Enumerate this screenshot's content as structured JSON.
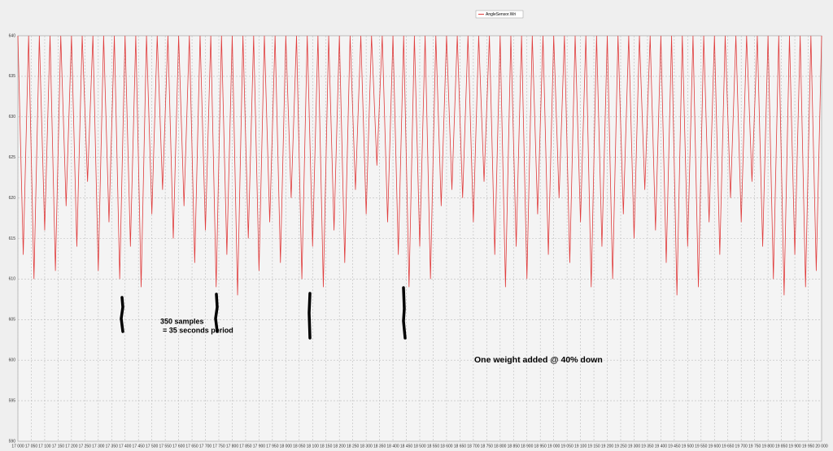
{
  "chart_data": {
    "type": "line",
    "x": [
      17000,
      17020,
      17040,
      17060,
      17080,
      17100,
      17120,
      17140,
      17160,
      17180,
      17200,
      17220,
      17240,
      17260,
      17280,
      17300,
      17320,
      17340,
      17360,
      17380,
      17400,
      17420,
      17440,
      17460,
      17480,
      17500,
      17520,
      17540,
      17560,
      17580,
      17600,
      17620,
      17640,
      17660,
      17680,
      17700,
      17720,
      17740,
      17760,
      17780,
      17800,
      17820,
      17840,
      17860,
      17880,
      17900,
      17920,
      17940,
      17960,
      17980,
      18000,
      18020,
      18040,
      18060,
      18080,
      18100,
      18120,
      18140,
      18160,
      18180,
      18200,
      18220,
      18240,
      18260,
      18280,
      18300,
      18320,
      18340,
      18360,
      18380,
      18400,
      18420,
      18440,
      18460,
      18480,
      18500,
      18520,
      18540,
      18560,
      18580,
      18600,
      18620,
      18640,
      18660,
      18680,
      18700,
      18720,
      18740,
      18760,
      18780,
      18800,
      18820,
      18840,
      18860,
      18880,
      18900,
      18920,
      18940,
      18960,
      18980,
      19000,
      19020,
      19040,
      19060,
      19080,
      19100,
      19120,
      19140,
      19160,
      19180,
      19200,
      19220,
      19240,
      19260,
      19280,
      19300,
      19320,
      19340,
      19360,
      19380,
      19400,
      19420,
      19440,
      19460,
      19480,
      19500,
      19520,
      19540,
      19560,
      19580,
      19600,
      19620,
      19640,
      19660,
      19680,
      19700,
      19720,
      19740,
      19760,
      19780,
      19800,
      19820,
      19840,
      19860,
      19880,
      19900,
      19920,
      19940,
      19960,
      19980,
      20000
    ],
    "series": [
      {
        "name": "AngleSensor.Wri",
        "color": "#e03c3c",
        "values": [
          640,
          613,
          640,
          610,
          640,
          616,
          640,
          611,
          640,
          619,
          640,
          614,
          640,
          622,
          640,
          611,
          640,
          617,
          640,
          610,
          640,
          614,
          640,
          609,
          640,
          618,
          640,
          621,
          640,
          615,
          640,
          619,
          640,
          612,
          640,
          616,
          640,
          609,
          640,
          613,
          640,
          608,
          640,
          615,
          640,
          611,
          640,
          617,
          640,
          612,
          640,
          620,
          640,
          610,
          640,
          614,
          640,
          609,
          640,
          616,
          640,
          612,
          640,
          621,
          640,
          618,
          640,
          624,
          640,
          617,
          640,
          613,
          640,
          609,
          640,
          614,
          640,
          610,
          640,
          619,
          640,
          621,
          640,
          620,
          640,
          617,
          640,
          622,
          640,
          613,
          640,
          609,
          640,
          614,
          640,
          610,
          640,
          618,
          640,
          613,
          640,
          620,
          640,
          612,
          640,
          617,
          640,
          609,
          640,
          614,
          640,
          610,
          640,
          618,
          640,
          615,
          640,
          621,
          640,
          616,
          640,
          612,
          640,
          608,
          640,
          614,
          640,
          609,
          640,
          617,
          640,
          613,
          640,
          620,
          640,
          617,
          640,
          622,
          640,
          614,
          640,
          610,
          640,
          608,
          640,
          613,
          640,
          609,
          640,
          611,
          640
        ]
      }
    ],
    "ylim": [
      590,
      640
    ],
    "yticks": [
      590,
      595,
      600,
      605,
      610,
      615,
      620,
      625,
      630,
      635,
      640
    ],
    "xlim": [
      17000,
      20000
    ],
    "xticks": [
      {
        "value": 17000,
        "label": "17 000"
      },
      {
        "value": 17050,
        "label": "17 050"
      },
      {
        "value": 17100,
        "label": "17 100"
      },
      {
        "value": 17150,
        "label": "17 150"
      },
      {
        "value": 17200,
        "label": "17 200"
      },
      {
        "value": 17250,
        "label": "17 250"
      },
      {
        "value": 17300,
        "label": "17 300"
      },
      {
        "value": 17350,
        "label": "17 350"
      },
      {
        "value": 17400,
        "label": "17 400"
      },
      {
        "value": 17450,
        "label": "17 450"
      },
      {
        "value": 17500,
        "label": "17 500"
      },
      {
        "value": 17550,
        "label": "17 550"
      },
      {
        "value": 17600,
        "label": "17 600"
      },
      {
        "value": 17650,
        "label": "17 650"
      },
      {
        "value": 17700,
        "label": "17 700"
      },
      {
        "value": 17750,
        "label": "17 750"
      },
      {
        "value": 17800,
        "label": "17 800"
      },
      {
        "value": 17850,
        "label": "17 850"
      },
      {
        "value": 17900,
        "label": "17 900"
      },
      {
        "value": 17950,
        "label": "17 950"
      },
      {
        "value": 18000,
        "label": "18 000"
      },
      {
        "value": 18050,
        "label": "18 050"
      },
      {
        "value": 18100,
        "label": "18 100"
      },
      {
        "value": 18150,
        "label": "18 150"
      },
      {
        "value": 18200,
        "label": "18 200"
      },
      {
        "value": 18250,
        "label": "18 250"
      },
      {
        "value": 18300,
        "label": "18 300"
      },
      {
        "value": 18350,
        "label": "18 350"
      },
      {
        "value": 18400,
        "label": "18 400"
      },
      {
        "value": 18450,
        "label": "18 450"
      },
      {
        "value": 18500,
        "label": "18 500"
      },
      {
        "value": 18550,
        "label": "18 550"
      },
      {
        "value": 18600,
        "label": "18 600"
      },
      {
        "value": 18650,
        "label": "18 650"
      },
      {
        "value": 18700,
        "label": "18 700"
      },
      {
        "value": 18750,
        "label": "18 750"
      },
      {
        "value": 18800,
        "label": "18 800"
      },
      {
        "value": 18850,
        "label": "18 850"
      },
      {
        "value": 18900,
        "label": "18 900"
      },
      {
        "value": 18950,
        "label": "18 950"
      },
      {
        "value": 19000,
        "label": "19 000"
      },
      {
        "value": 19050,
        "label": "19 050"
      },
      {
        "value": 19100,
        "label": "19 100"
      },
      {
        "value": 19150,
        "label": "19 150"
      },
      {
        "value": 19200,
        "label": "19 200"
      },
      {
        "value": 19250,
        "label": "19 250"
      },
      {
        "value": 19300,
        "label": "19 300"
      },
      {
        "value": 19350,
        "label": "19 350"
      },
      {
        "value": 19400,
        "label": "19 400"
      },
      {
        "value": 19450,
        "label": "19 450"
      },
      {
        "value": 19500,
        "label": "19 500"
      },
      {
        "value": 19550,
        "label": "19 550"
      },
      {
        "value": 19600,
        "label": "19 600"
      },
      {
        "value": 19650,
        "label": "19 650"
      },
      {
        "value": 19700,
        "label": "19 700"
      },
      {
        "value": 19750,
        "label": "19 750"
      },
      {
        "value": 19800,
        "label": "19 800"
      },
      {
        "value": 19850,
        "label": "19 850"
      },
      {
        "value": 19900,
        "label": "19 900"
      },
      {
        "value": 19950,
        "label": "19 950"
      },
      {
        "value": 20000,
        "label": "20 000"
      }
    ],
    "grid": true,
    "annotations": [
      "350 samples",
      "= 35 seconds period",
      "One weight added @ 40% down"
    ]
  }
}
